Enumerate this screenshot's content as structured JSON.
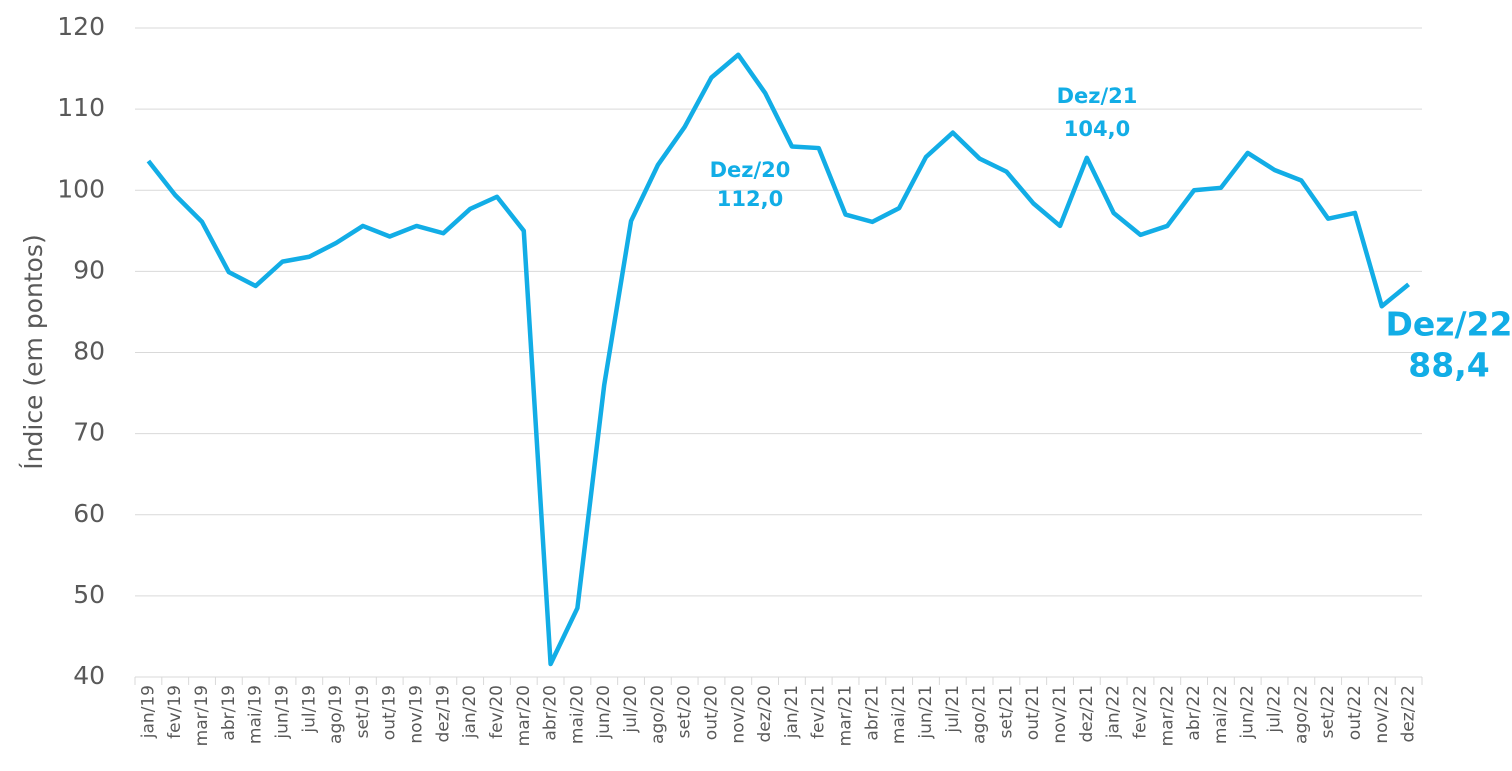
{
  "chart_data": {
    "type": "line",
    "y_label": "Índice (em pontos)",
    "categories": [
      "jan/19",
      "fev/19",
      "mar/19",
      "abr/19",
      "mai/19",
      "jun/19",
      "jul/19",
      "ago/19",
      "set/19",
      "out/19",
      "nov/19",
      "dez/19",
      "jan/20",
      "fev/20",
      "mar/20",
      "abr/20",
      "mai/20",
      "jun/20",
      "jul/20",
      "ago/20",
      "set/20",
      "out/20",
      "nov/20",
      "dez/20",
      "jan/21",
      "fev/21",
      "mar/21",
      "abr/21",
      "mai/21",
      "jun/21",
      "jul/21",
      "ago/21",
      "set/21",
      "out/21",
      "nov/21",
      "dez/21",
      "jan/22",
      "fev/22",
      "mar/22",
      "abr/22",
      "mai/22",
      "jun/22",
      "jul/22",
      "ago/22",
      "set/22",
      "out/22",
      "nov/22",
      "dez/22"
    ],
    "series": [
      {
        "name": "Índice",
        "color": "#12ade6",
        "values": [
          103.6,
          99.4,
          96.1,
          89.9,
          88.2,
          91.2,
          91.8,
          93.5,
          95.6,
          94.3,
          95.6,
          94.7,
          97.7,
          99.2,
          95.0,
          41.6,
          48.5,
          76.0,
          96.2,
          103.1,
          107.8,
          113.9,
          116.7,
          112.0,
          105.4,
          105.2,
          97.0,
          96.1,
          97.8,
          104.1,
          107.1,
          103.9,
          102.3,
          98.4,
          95.6,
          104.0,
          97.2,
          94.5,
          95.6,
          100.0,
          100.3,
          104.6,
          102.5,
          101.2,
          96.5,
          97.2,
          85.7,
          88.4
        ]
      }
    ],
    "annotations": [
      [
        "Dez/20",
        "112,0"
      ],
      [
        "Dez/21",
        "104,0"
      ],
      [
        "Dez/22",
        "88,4"
      ]
    ],
    "ylim": [
      40,
      120
    ],
    "yticks": [
      40,
      50,
      60,
      70,
      80,
      90,
      100,
      110,
      120
    ],
    "grid": true
  }
}
